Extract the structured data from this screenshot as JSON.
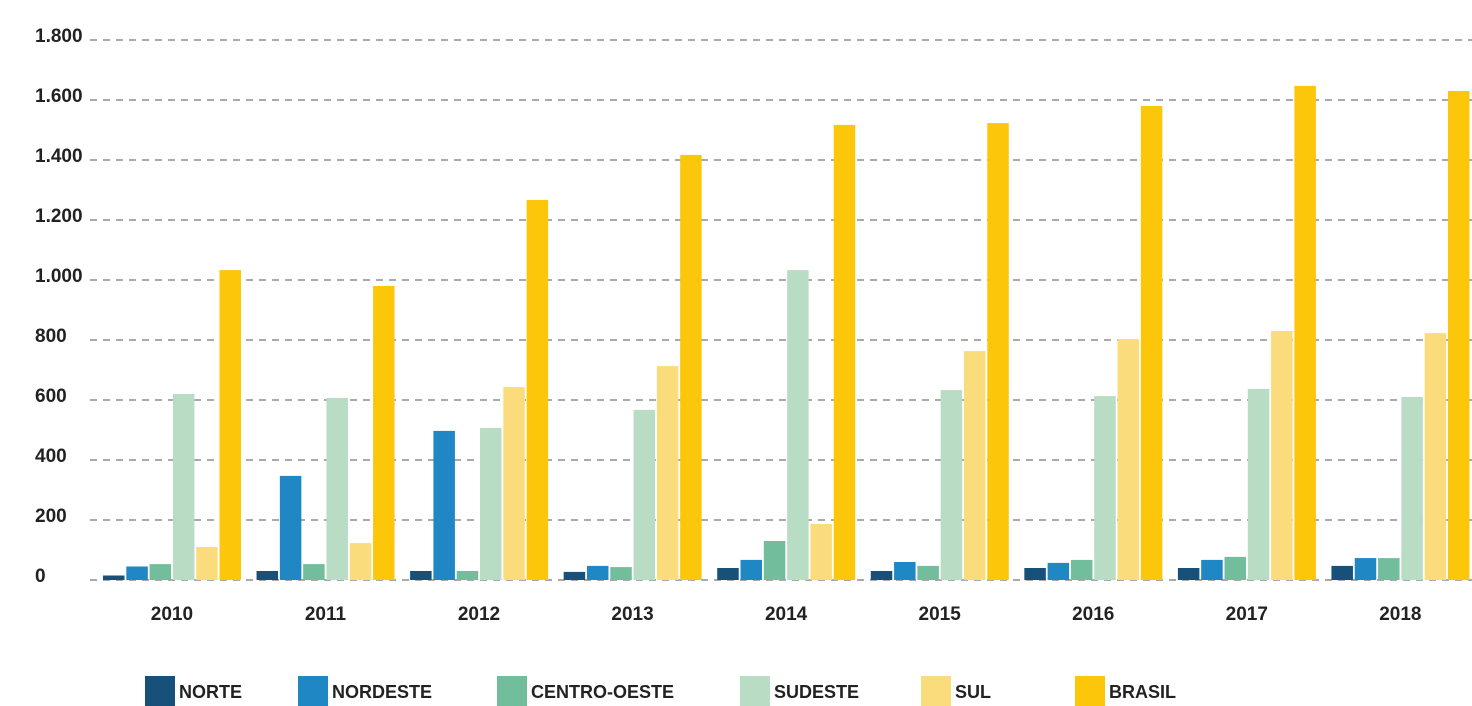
{
  "chart_data": {
    "type": "bar",
    "categories": [
      "2010",
      "2011",
      "2012",
      "2013",
      "2014",
      "2015",
      "2016",
      "2017",
      "2018"
    ],
    "series": [
      {
        "name": "NORTE",
        "color": "#17517a",
        "values": [
          15,
          30,
          30,
          27,
          40,
          30,
          40,
          40,
          47
        ]
      },
      {
        "name": "NORDESTE",
        "color": "#1f87c3",
        "values": [
          45,
          347,
          497,
          47,
          67,
          60,
          57,
          67,
          73
        ]
      },
      {
        "name": "CENTRO-OESTE",
        "color": "#72bd9c",
        "values": [
          53,
          53,
          30,
          43,
          130,
          47,
          67,
          77,
          73
        ]
      },
      {
        "name": "SUDESTE",
        "color": "#b9dcc4",
        "values": [
          620,
          607,
          507,
          567,
          1033,
          633,
          613,
          637,
          610
        ]
      },
      {
        "name": "SUL",
        "color": "#fbdc7d",
        "values": [
          110,
          123,
          643,
          713,
          187,
          763,
          803,
          830,
          823
        ]
      },
      {
        "name": "BRASIL",
        "color": "#fcc60a",
        "values": [
          1033,
          980,
          1267,
          1417,
          1517,
          1523,
          1580,
          1647,
          1630
        ]
      }
    ],
    "ylim": [
      0,
      1800
    ],
    "yticks": [
      0,
      200,
      400,
      600,
      800,
      {
        "value": 1000,
        "label": "1.000"
      },
      {
        "value": 1200,
        "label": "1.200"
      },
      {
        "value": 1400,
        "label": "1.400"
      },
      {
        "value": 1600,
        "label": "1.600"
      },
      {
        "value": 1800,
        "label": "1.800"
      }
    ],
    "grid": true
  }
}
